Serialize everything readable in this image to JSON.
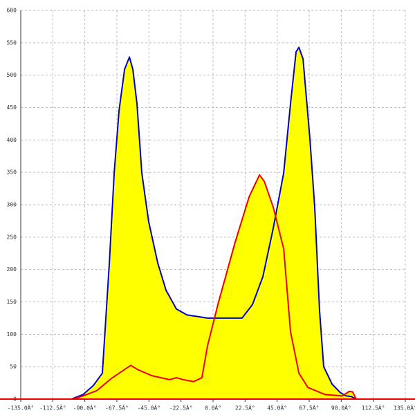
{
  "chart_data": {
    "type": "area",
    "fill": "#ffff00",
    "grid": true,
    "xlim": [
      -135,
      135
    ],
    "ylim": [
      0,
      600
    ],
    "xticks": [
      {
        "value": -135,
        "label": "-135.0Â°"
      },
      {
        "value": -112.5,
        "label": "-112.5Â°"
      },
      {
        "value": -90,
        "label": "-90.0Â°"
      },
      {
        "value": -67.5,
        "label": "-67.5Â°"
      },
      {
        "value": -45,
        "label": "-45.0Â°"
      },
      {
        "value": -22.5,
        "label": "-22.5Â°"
      },
      {
        "value": 0,
        "label": "0.0Â°"
      },
      {
        "value": 22.5,
        "label": "22.5Â°"
      },
      {
        "value": 45,
        "label": "45.0Â°"
      },
      {
        "value": 67.5,
        "label": "67.5Â°"
      },
      {
        "value": 90,
        "label": "90.0Â°"
      },
      {
        "value": 112.5,
        "label": "112.5Â°"
      },
      {
        "value": 135,
        "label": "135.0Â°"
      }
    ],
    "yticks": [
      0,
      50,
      100,
      150,
      200,
      250,
      300,
      350,
      400,
      450,
      500,
      550,
      600
    ],
    "series": [
      {
        "color": "#0000cc",
        "x": [
          -99.5,
          -91.3,
          -84,
          -77.7,
          -72.8,
          -69.4,
          -66,
          -62.1,
          -58.7,
          -56.3,
          -53.4,
          -50,
          -45.2,
          -38.8,
          -33,
          -25.7,
          -18.4,
          -3.9,
          10.7,
          20.4,
          27.7,
          35,
          42.3,
          49.6,
          54.4,
          58.3,
          60.3,
          63.2,
          68,
          71.4,
          74.8,
          77.7,
          83.6,
          89.4,
          93.3,
          97,
          100.5
        ],
        "values": [
          0,
          7,
          21,
          40,
          210,
          349,
          445,
          509,
          528,
          509,
          456,
          349,
          274,
          210,
          168,
          139,
          130,
          125,
          125,
          125,
          146,
          189,
          264,
          349,
          456,
          536,
          543,
          525,
          402,
          296,
          136,
          50,
          23,
          10,
          5,
          4,
          0
        ]
      },
      {
        "color": "#ee0000",
        "x": [
          -98.6,
          -91.3,
          -81.6,
          -71.9,
          -64.6,
          -57.8,
          -52.4,
          -42.7,
          -30.6,
          -25.7,
          -20.9,
          -13.6,
          -7.8,
          -3.9,
          3.4,
          15.5,
          25.3,
          32.6,
          36,
          42.3,
          49.6,
          54.4,
          60.3,
          66.6,
          78.7,
          90.8,
          95.7,
          98.1,
          100.5
        ],
        "values": [
          0,
          5,
          13,
          31,
          42,
          52,
          45,
          36,
          30,
          33,
          30,
          27,
          33,
          82,
          146,
          242,
          312,
          346,
          336,
          296,
          232,
          104,
          40,
          18,
          7,
          5,
          12,
          11,
          0
        ]
      }
    ]
  }
}
